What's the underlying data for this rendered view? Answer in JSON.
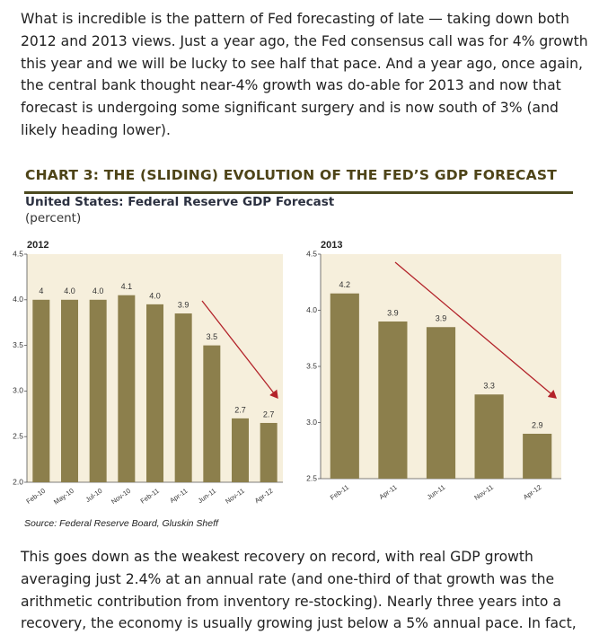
{
  "paragraphs": [
    "What is incredible is the pattern of Fed forecasting of late — taking down both 2012 and 2013 views. Just a year ago, the Fed consensus call was for 4% growth this year and we will be lucky to see half that pace. And a year ago, once again, the central bank thought near-4% growth was do-able for 2013 and now that forecast is undergoing some significant surgery and is now south of 3% (and likely heading lower).",
    "This goes down as the weakest recovery on record, with real GDP growth averaging just 2.4% at an annual rate (and one-third of that growth was the arithmetic contribution from inventory re-stocking). Nearly three years into a recovery, the economy is usually growing just below a 5% annual pace. In fact,"
  ],
  "chart_heading": "CHART 3: THE (SLIDING) EVOLUTION OF THE FED’S GDP FORECAST",
  "chart_subtitle": "United States: Federal Reserve GDP Forecast",
  "chart_unit": "(percent)",
  "source": "Source: Federal Reserve Board, Gluskin Sheff",
  "chart_data": [
    {
      "type": "bar",
      "title": "2012",
      "categories": [
        "Feb-10",
        "May-10",
        "Jul-10",
        "Nov-10",
        "Feb-11",
        "Apr-11",
        "Jun-11",
        "Nov-11",
        "Apr-12"
      ],
      "values": [
        4.0,
        4.0,
        4.0,
        4.05,
        3.95,
        3.85,
        3.5,
        2.7,
        2.65
      ],
      "value_labels": [
        "4",
        "4.0",
        "4.0",
        "4.1",
        "4.0",
        "3.9",
        "3.5",
        "2.7",
        "2.7"
      ],
      "color": "#8c7f4c",
      "ylim": [
        2.0,
        4.5
      ],
      "yticks": [
        {
          "value": 2,
          "label": "2.0"
        },
        2.5,
        {
          "value": 3,
          "label": "3.0"
        },
        3.5,
        {
          "value": 4,
          "label": "4.0"
        },
        4.5
      ]
    },
    {
      "type": "bar",
      "title": "2013",
      "categories": [
        "Feb-11",
        "Apr-11",
        "Jun-11",
        "Nov-11",
        "Apr-12"
      ],
      "values": [
        4.15,
        3.9,
        3.85,
        3.25,
        2.9
      ],
      "value_labels": [
        "4.2",
        "3.9",
        "3.9",
        "3.3",
        "2.9"
      ],
      "color": "#8c7f4c",
      "ylim": [
        2.5,
        4.5
      ],
      "yticks": [
        2.5,
        {
          "value": 3,
          "label": "3.0"
        },
        3.5,
        {
          "value": 4,
          "label": "4.0"
        },
        4.5
      ]
    }
  ]
}
